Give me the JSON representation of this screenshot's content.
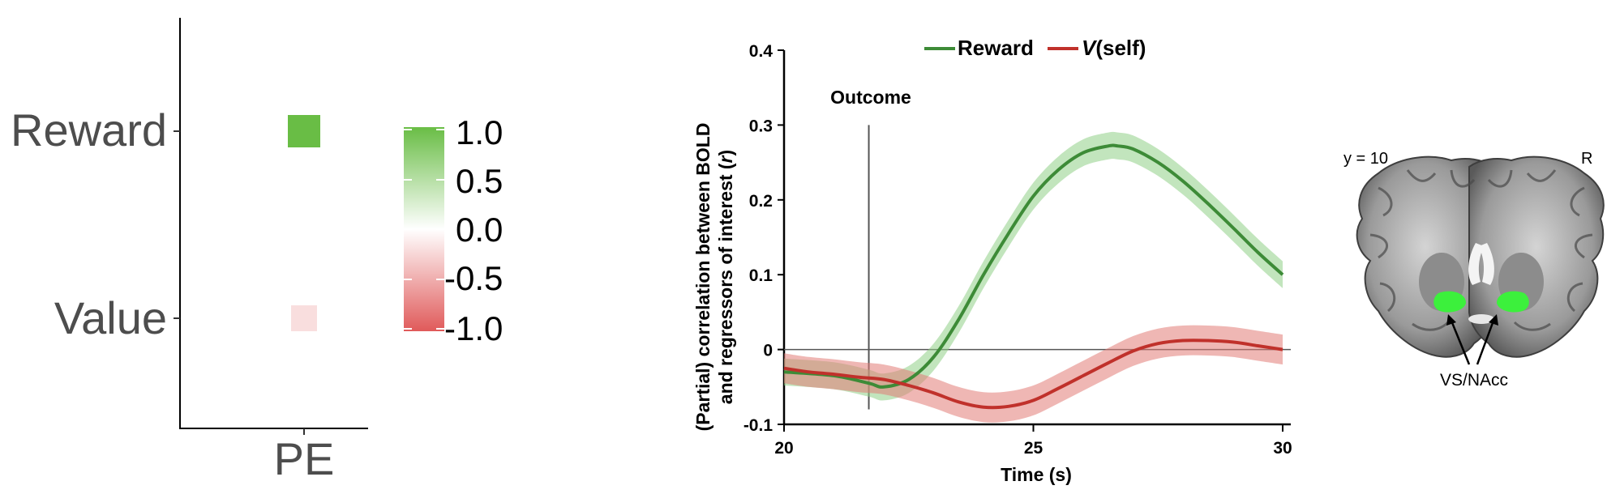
{
  "chart_data": [
    {
      "type": "heatmap",
      "rows": [
        "Reward",
        "Value"
      ],
      "columns": [
        "PE"
      ],
      "values": [
        [
          1.0
        ],
        [
          -0.2
        ]
      ],
      "colorbar": {
        "ticks": [
          "1.0",
          "0.5",
          "0.0",
          "-0.5",
          "-1.0"
        ],
        "range": [
          -1,
          1
        ],
        "colors": {
          "high": "#69bd45",
          "mid": "#ffffff",
          "low": "#e05a5a"
        }
      }
    },
    {
      "type": "line",
      "legend": [
        "Reward",
        "V(self)"
      ],
      "legend_italic": "V",
      "legend_rest": "(self)",
      "ylabel_line1": "(Partial) correlation between BOLD",
      "ylabel_line2_pre": "and regressors of interest (",
      "ylabel_line2_ital": "r",
      "ylabel_line2_post": ")",
      "xlabel": "Time (s)",
      "xlim": [
        20,
        30
      ],
      "ylim": [
        -0.1,
        0.4
      ],
      "xticks": [
        "20",
        "25",
        "30"
      ],
      "yticks": [
        "-0.1",
        "0",
        "0.1",
        "0.2",
        "0.3",
        "0.4"
      ],
      "annotation": {
        "label": "Outcome",
        "x": 21.7
      },
      "series": [
        {
          "name": "Reward",
          "color": "#3d8b37",
          "band": "#8fcf87",
          "x": [
            20.0,
            21.0,
            21.7,
            22.0,
            22.5,
            23.0,
            23.5,
            24.0,
            24.5,
            25.0,
            25.5,
            26.0,
            26.5,
            26.7,
            27.0,
            27.5,
            28.0,
            28.5,
            29.0,
            29.5,
            30.0
          ],
          "y": [
            -0.03,
            -0.035,
            -0.045,
            -0.05,
            -0.04,
            -0.01,
            0.04,
            0.1,
            0.155,
            0.205,
            0.24,
            0.263,
            0.272,
            0.272,
            0.268,
            0.25,
            0.225,
            0.195,
            0.163,
            0.13,
            0.1
          ],
          "err": 0.018
        },
        {
          "name": "V(self)",
          "color": "#c0312b",
          "band": "#e27b76",
          "x": [
            20.0,
            20.5,
            21.0,
            21.5,
            22.0,
            22.5,
            23.0,
            23.5,
            24.0,
            24.5,
            25.0,
            25.5,
            26.0,
            26.5,
            27.0,
            27.5,
            28.0,
            28.5,
            29.0,
            29.5,
            30.0
          ],
          "y": [
            -0.025,
            -0.03,
            -0.033,
            -0.037,
            -0.04,
            -0.048,
            -0.058,
            -0.07,
            -0.077,
            -0.076,
            -0.068,
            -0.052,
            -0.035,
            -0.018,
            -0.002,
            0.008,
            0.012,
            0.012,
            0.01,
            0.005,
            0.0
          ],
          "err": 0.02
        }
      ]
    }
  ],
  "brain": {
    "slice_label": "y = 10",
    "side_label": "R",
    "roi_label": "VS/NAcc",
    "roi_color": "#3cf03c"
  }
}
